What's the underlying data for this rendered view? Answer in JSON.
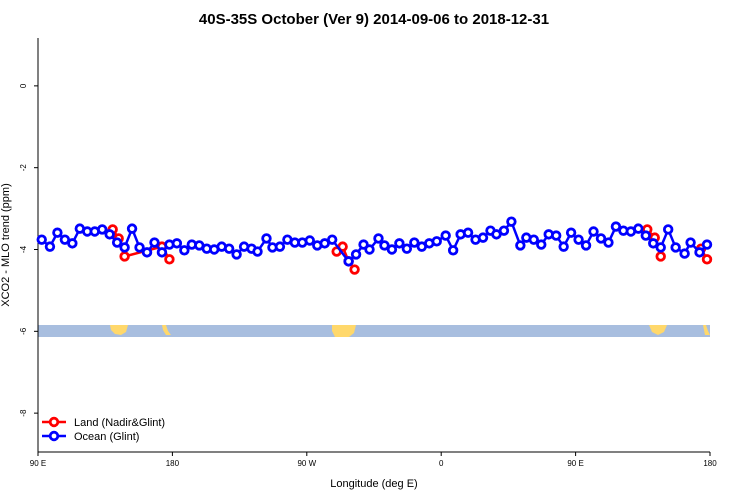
{
  "chart_data": {
    "type": "line",
    "title": "40S-35S October (Ver 9)   2014-09-06 to 2018-12-31",
    "x_label": "Longitude (deg E)",
    "y_label": "XCO2 - MLO trend (ppm)",
    "xlim": [
      90,
      540
    ],
    "xticks": [
      {
        "value": 90,
        "label": "90 E"
      },
      180,
      {
        "value": 270,
        "label": "90 W"
      },
      0,
      {
        "value": 450,
        "label": "90 E"
      },
      {
        "value": 540,
        "label": "180"
      }
    ],
    "ylim": [
      -8.95,
      1.17
    ],
    "yticks": [
      0,
      -2,
      -4,
      -6,
      -8
    ],
    "legend": "bottom-left",
    "series": [
      {
        "name": "Land (Nadir&Glint)",
        "color": "#ff0000",
        "x": [
          140,
          144,
          148,
          173,
          178,
          null,
          290,
          294,
          298,
          302,
          null,
          498,
          503,
          507,
          null,
          534,
          538
        ],
        "values": [
          -3.51,
          -3.73,
          -4.17,
          -3.93,
          -4.24,
          null,
          -4.05,
          -3.93,
          -4.29,
          -4.49,
          null,
          -3.51,
          -3.71,
          -4.17,
          null,
          -3.98,
          -4.24
        ]
      },
      {
        "name": "Ocean (Glint)",
        "color": "#0000ff",
        "x": [
          92.5,
          98,
          103,
          108,
          113,
          118,
          123,
          128,
          133,
          138,
          143,
          148,
          153,
          158,
          163,
          168,
          173,
          178,
          183,
          188,
          193,
          198,
          203,
          208,
          213,
          218,
          223,
          228,
          233,
          237,
          243,
          247,
          252,
          257,
          262,
          267,
          272,
          277,
          282,
          287,
          298,
          303,
          308,
          312,
          318,
          322,
          327,
          332,
          337,
          342,
          347,
          352,
          357,
          363,
          368,
          373,
          378,
          383,
          388,
          393,
          397,
          402,
          407,
          413,
          417,
          422,
          427,
          432,
          437,
          442,
          447,
          452,
          457,
          462,
          467,
          472,
          477,
          482,
          487,
          492,
          497,
          502,
          507,
          512,
          517,
          523,
          527,
          533,
          538
        ],
        "values": [
          -3.76,
          -3.93,
          -3.59,
          -3.76,
          -3.85,
          -3.49,
          -3.56,
          -3.56,
          -3.51,
          -3.63,
          -3.83,
          -3.95,
          -3.49,
          -3.95,
          -4.07,
          -3.83,
          -4.07,
          -3.88,
          -3.85,
          -4.02,
          -3.88,
          -3.9,
          -3.98,
          -4.0,
          -3.93,
          -3.98,
          -4.12,
          -3.93,
          -3.98,
          -4.05,
          -3.73,
          -3.95,
          -3.93,
          -3.76,
          -3.83,
          -3.83,
          -3.78,
          -3.9,
          -3.85,
          -3.76,
          -4.29,
          -4.12,
          -3.88,
          -4.0,
          -3.73,
          -3.9,
          -4.0,
          -3.85,
          -3.98,
          -3.83,
          -3.93,
          -3.85,
          -3.8,
          -3.66,
          -4.02,
          -3.63,
          -3.59,
          -3.76,
          -3.71,
          -3.54,
          -3.63,
          -3.54,
          -3.32,
          -3.9,
          -3.71,
          -3.76,
          -3.88,
          -3.63,
          -3.66,
          -3.93,
          -3.59,
          -3.76,
          -3.9,
          -3.56,
          -3.73,
          -3.83,
          -3.44,
          -3.54,
          -3.56,
          -3.49,
          -3.66,
          -3.85,
          -3.95,
          -3.51,
          -3.95,
          -4.1,
          -3.83,
          -4.07,
          -3.88
        ]
      }
    ]
  }
}
